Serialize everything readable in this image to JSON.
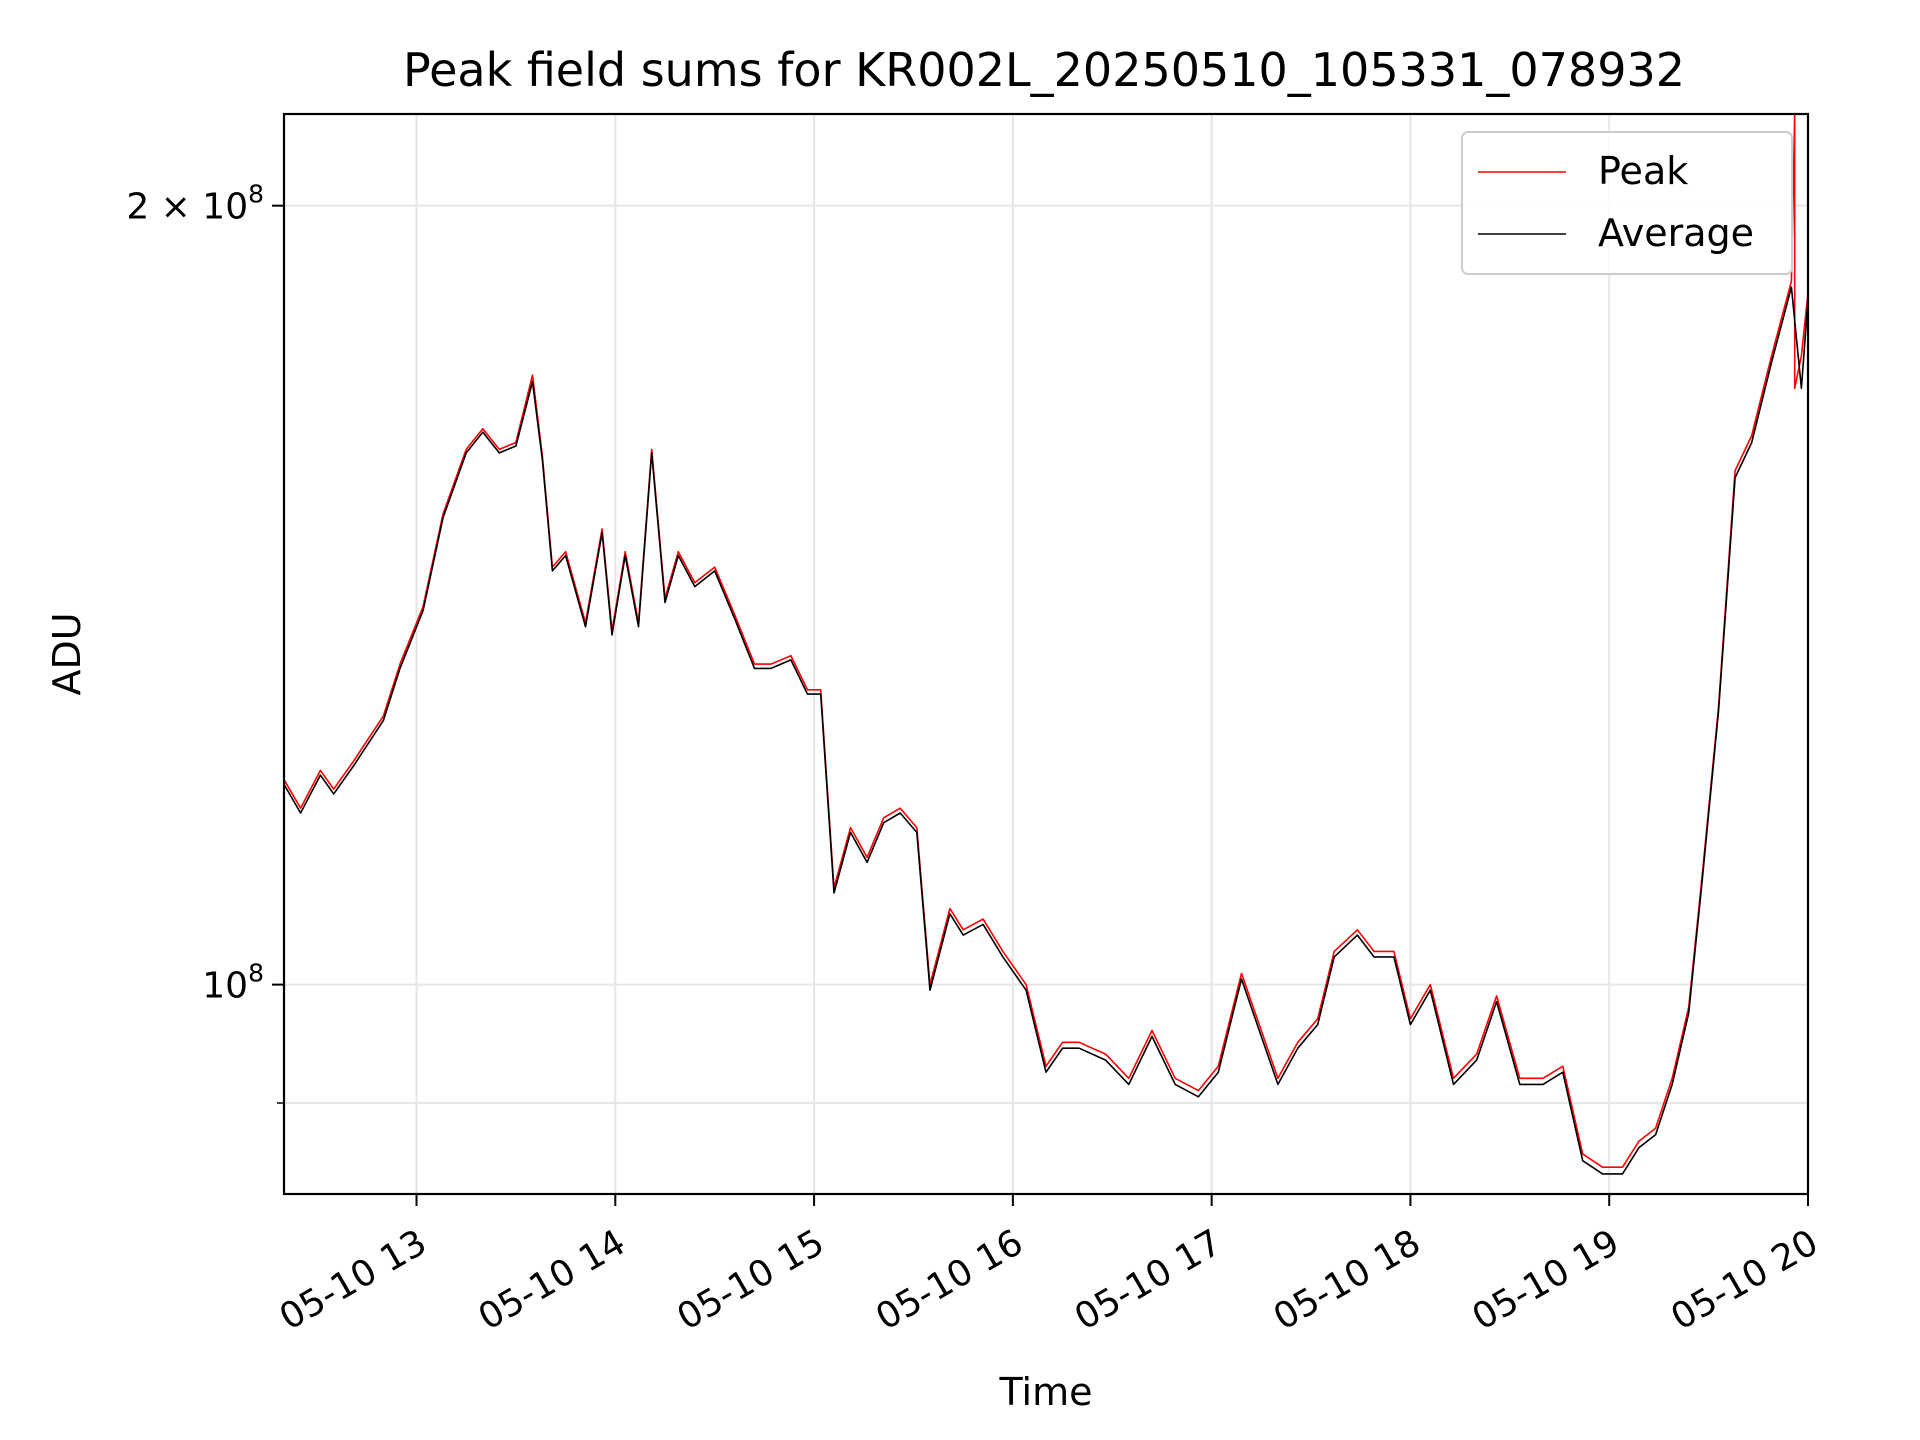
{
  "chart_data": {
    "type": "line",
    "title": "Peak field sums for KR002L_20250510_105331_078932",
    "xlabel": "Time",
    "ylabel": "ADU",
    "y_scale": "log",
    "xlim": [
      "2025-05-10 12:20",
      "2025-05-10 20:00"
    ],
    "ylim": [
      83000000,
      217000000
    ],
    "x_ticks": [
      "05-10 13",
      "05-10 14",
      "05-10 15",
      "05-10 16",
      "05-10 17",
      "05-10 18",
      "05-10 19",
      "05-10 20"
    ],
    "y_ticks": [
      {
        "value": 100000000,
        "base": "10",
        "exp": "8",
        "prefix": ""
      },
      {
        "value": 200000000,
        "base": "10",
        "exp": "8",
        "prefix": "2 × "
      }
    ],
    "y_minor_ticks": [
      90000000
    ],
    "grid": true,
    "legend": {
      "placement": "upper right"
    },
    "colors": {
      "peak": "#ff0000",
      "average": "#000000",
      "grid": "#e6e6e6"
    },
    "series": [
      {
        "name": "Peak",
        "x": [
          "2025-05-10 12:20",
          "2025-05-10 12:25",
          "2025-05-10 12:31",
          "2025-05-10 12:35",
          "2025-05-10 12:41",
          "2025-05-10 12:50",
          "2025-05-10 12:55",
          "2025-05-10 13:02",
          "2025-05-10 13:08",
          "2025-05-10 13:15",
          "2025-05-10 13:20",
          "2025-05-10 13:25",
          "2025-05-10 13:30",
          "2025-05-10 13:35",
          "2025-05-10 13:38",
          "2025-05-10 13:41",
          "2025-05-10 13:45",
          "2025-05-10 13:51",
          "2025-05-10 13:56",
          "2025-05-10 13:59",
          "2025-05-10 14:03",
          "2025-05-10 14:07",
          "2025-05-10 14:11",
          "2025-05-10 14:15",
          "2025-05-10 14:19",
          "2025-05-10 14:24",
          "2025-05-10 14:30",
          "2025-05-10 14:36",
          "2025-05-10 14:42",
          "2025-05-10 14:47",
          "2025-05-10 14:53",
          "2025-05-10 14:58",
          "2025-05-10 15:02",
          "2025-05-10 15:06",
          "2025-05-10 15:11",
          "2025-05-10 15:16",
          "2025-05-10 15:21",
          "2025-05-10 15:26",
          "2025-05-10 15:31",
          "2025-05-10 15:35",
          "2025-05-10 15:41",
          "2025-05-10 15:45",
          "2025-05-10 15:51",
          "2025-05-10 15:57",
          "2025-05-10 16:04",
          "2025-05-10 16:10",
          "2025-05-10 16:15",
          "2025-05-10 16:20",
          "2025-05-10 16:28",
          "2025-05-10 16:35",
          "2025-05-10 16:42",
          "2025-05-10 16:49",
          "2025-05-10 16:56",
          "2025-05-10 17:02",
          "2025-05-10 17:09",
          "2025-05-10 17:15",
          "2025-05-10 17:20",
          "2025-05-10 17:26",
          "2025-05-10 17:32",
          "2025-05-10 17:37",
          "2025-05-10 17:44",
          "2025-05-10 17:49",
          "2025-05-10 17:55",
          "2025-05-10 18:00",
          "2025-05-10 18:06",
          "2025-05-10 18:13",
          "2025-05-10 18:20",
          "2025-05-10 18:26",
          "2025-05-10 18:33",
          "2025-05-10 18:40",
          "2025-05-10 18:46",
          "2025-05-10 18:52",
          "2025-05-10 18:58",
          "2025-05-10 19:04",
          "2025-05-10 19:09",
          "2025-05-10 19:14",
          "2025-05-10 19:19",
          "2025-05-10 19:24",
          "2025-05-10 19:28",
          "2025-05-10 19:33",
          "2025-05-10 19:38",
          "2025-05-10 19:43",
          "2025-05-10 19:49",
          "2025-05-10 19:55",
          "2025-05-10 19:56",
          "2025-05-10 19:56",
          "2025-05-10 19:58",
          "2025-05-10 20:00"
        ],
        "y": [
          120000000,
          117000000,
          121000000,
          119000000,
          122000000,
          127000000,
          133000000,
          140000000,
          152000000,
          161000000,
          164000000,
          161000000,
          162000000,
          172000000,
          160000000,
          145000000,
          147000000,
          138000000,
          150000000,
          137000000,
          147000000,
          138000000,
          161000000,
          141000000,
          147000000,
          143000000,
          145000000,
          139000000,
          133000000,
          133000000,
          134000000,
          130000000,
          130000000,
          109000000,
          115000000,
          112000000,
          116000000,
          117000000,
          115000000,
          100000000,
          107000000,
          105000000,
          106000000,
          103000000,
          100000000,
          93000000,
          95000000,
          95000000,
          94000000,
          92000000,
          96000000,
          92000000,
          91000000,
          93000000,
          101000000,
          96000000,
          92000000,
          95000000,
          97000000,
          103000000,
          105000000,
          103000000,
          103000000,
          97000000,
          100000000,
          92000000,
          94000000,
          99000000,
          92000000,
          92000000,
          93000000,
          86000000,
          85000000,
          85000000,
          87000000,
          88000000,
          92000000,
          98000000,
          110000000,
          128000000,
          158000000,
          163000000,
          175000000,
          187000000,
          230000000,
          170000000,
          175000000,
          185000000
        ]
      },
      {
        "name": "Average",
        "x": [
          "2025-05-10 12:20",
          "2025-05-10 12:25",
          "2025-05-10 12:31",
          "2025-05-10 12:35",
          "2025-05-10 12:41",
          "2025-05-10 12:50",
          "2025-05-10 12:55",
          "2025-05-10 13:02",
          "2025-05-10 13:08",
          "2025-05-10 13:15",
          "2025-05-10 13:20",
          "2025-05-10 13:25",
          "2025-05-10 13:30",
          "2025-05-10 13:35",
          "2025-05-10 13:38",
          "2025-05-10 13:41",
          "2025-05-10 13:45",
          "2025-05-10 13:51",
          "2025-05-10 13:56",
          "2025-05-10 13:59",
          "2025-05-10 14:03",
          "2025-05-10 14:07",
          "2025-05-10 14:11",
          "2025-05-10 14:15",
          "2025-05-10 14:19",
          "2025-05-10 14:24",
          "2025-05-10 14:30",
          "2025-05-10 14:36",
          "2025-05-10 14:42",
          "2025-05-10 14:47",
          "2025-05-10 14:53",
          "2025-05-10 14:58",
          "2025-05-10 15:02",
          "2025-05-10 15:06",
          "2025-05-10 15:11",
          "2025-05-10 15:16",
          "2025-05-10 15:21",
          "2025-05-10 15:26",
          "2025-05-10 15:31",
          "2025-05-10 15:35",
          "2025-05-10 15:41",
          "2025-05-10 15:45",
          "2025-05-10 15:51",
          "2025-05-10 15:57",
          "2025-05-10 16:04",
          "2025-05-10 16:10",
          "2025-05-10 16:15",
          "2025-05-10 16:20",
          "2025-05-10 16:28",
          "2025-05-10 16:35",
          "2025-05-10 16:42",
          "2025-05-10 16:49",
          "2025-05-10 16:56",
          "2025-05-10 17:02",
          "2025-05-10 17:09",
          "2025-05-10 17:15",
          "2025-05-10 17:20",
          "2025-05-10 17:26",
          "2025-05-10 17:32",
          "2025-05-10 17:37",
          "2025-05-10 17:44",
          "2025-05-10 17:49",
          "2025-05-10 17:55",
          "2025-05-10 18:00",
          "2025-05-10 18:06",
          "2025-05-10 18:13",
          "2025-05-10 18:20",
          "2025-05-10 18:26",
          "2025-05-10 18:33",
          "2025-05-10 18:40",
          "2025-05-10 18:46",
          "2025-05-10 18:52",
          "2025-05-10 18:58",
          "2025-05-10 19:04",
          "2025-05-10 19:09",
          "2025-05-10 19:14",
          "2025-05-10 19:19",
          "2025-05-10 19:24",
          "2025-05-10 19:28",
          "2025-05-10 19:33",
          "2025-05-10 19:38",
          "2025-05-10 19:43",
          "2025-05-10 19:49",
          "2025-05-10 19:55",
          "2025-05-10 19:58",
          "2025-05-10 20:00"
        ],
        "y": [
          119500000,
          116500000,
          120500000,
          118500000,
          121500000,
          126500000,
          132500000,
          139500000,
          151500000,
          160500000,
          163500000,
          160500000,
          161500000,
          171000000,
          159500000,
          144500000,
          146500000,
          137500000,
          149500000,
          136500000,
          146500000,
          137500000,
          160500000,
          140500000,
          146500000,
          142500000,
          144500000,
          138500000,
          132500000,
          132500000,
          133500000,
          129500000,
          129500000,
          108500000,
          114500000,
          111500000,
          115500000,
          116500000,
          114500000,
          99500000,
          106500000,
          104500000,
          105500000,
          102500000,
          99500000,
          92500000,
          94500000,
          94500000,
          93500000,
          91500000,
          95500000,
          91500000,
          90500000,
          92500000,
          100500000,
          95500000,
          91500000,
          94500000,
          96500000,
          102500000,
          104500000,
          102500000,
          102500000,
          96500000,
          99500000,
          91500000,
          93500000,
          98500000,
          91500000,
          91500000,
          92500000,
          85500000,
          84500000,
          84500000,
          86500000,
          87500000,
          91500000,
          97500000,
          109500000,
          127500000,
          157000000,
          162000000,
          174000000,
          186000000,
          170000000,
          184000000
        ]
      }
    ]
  }
}
